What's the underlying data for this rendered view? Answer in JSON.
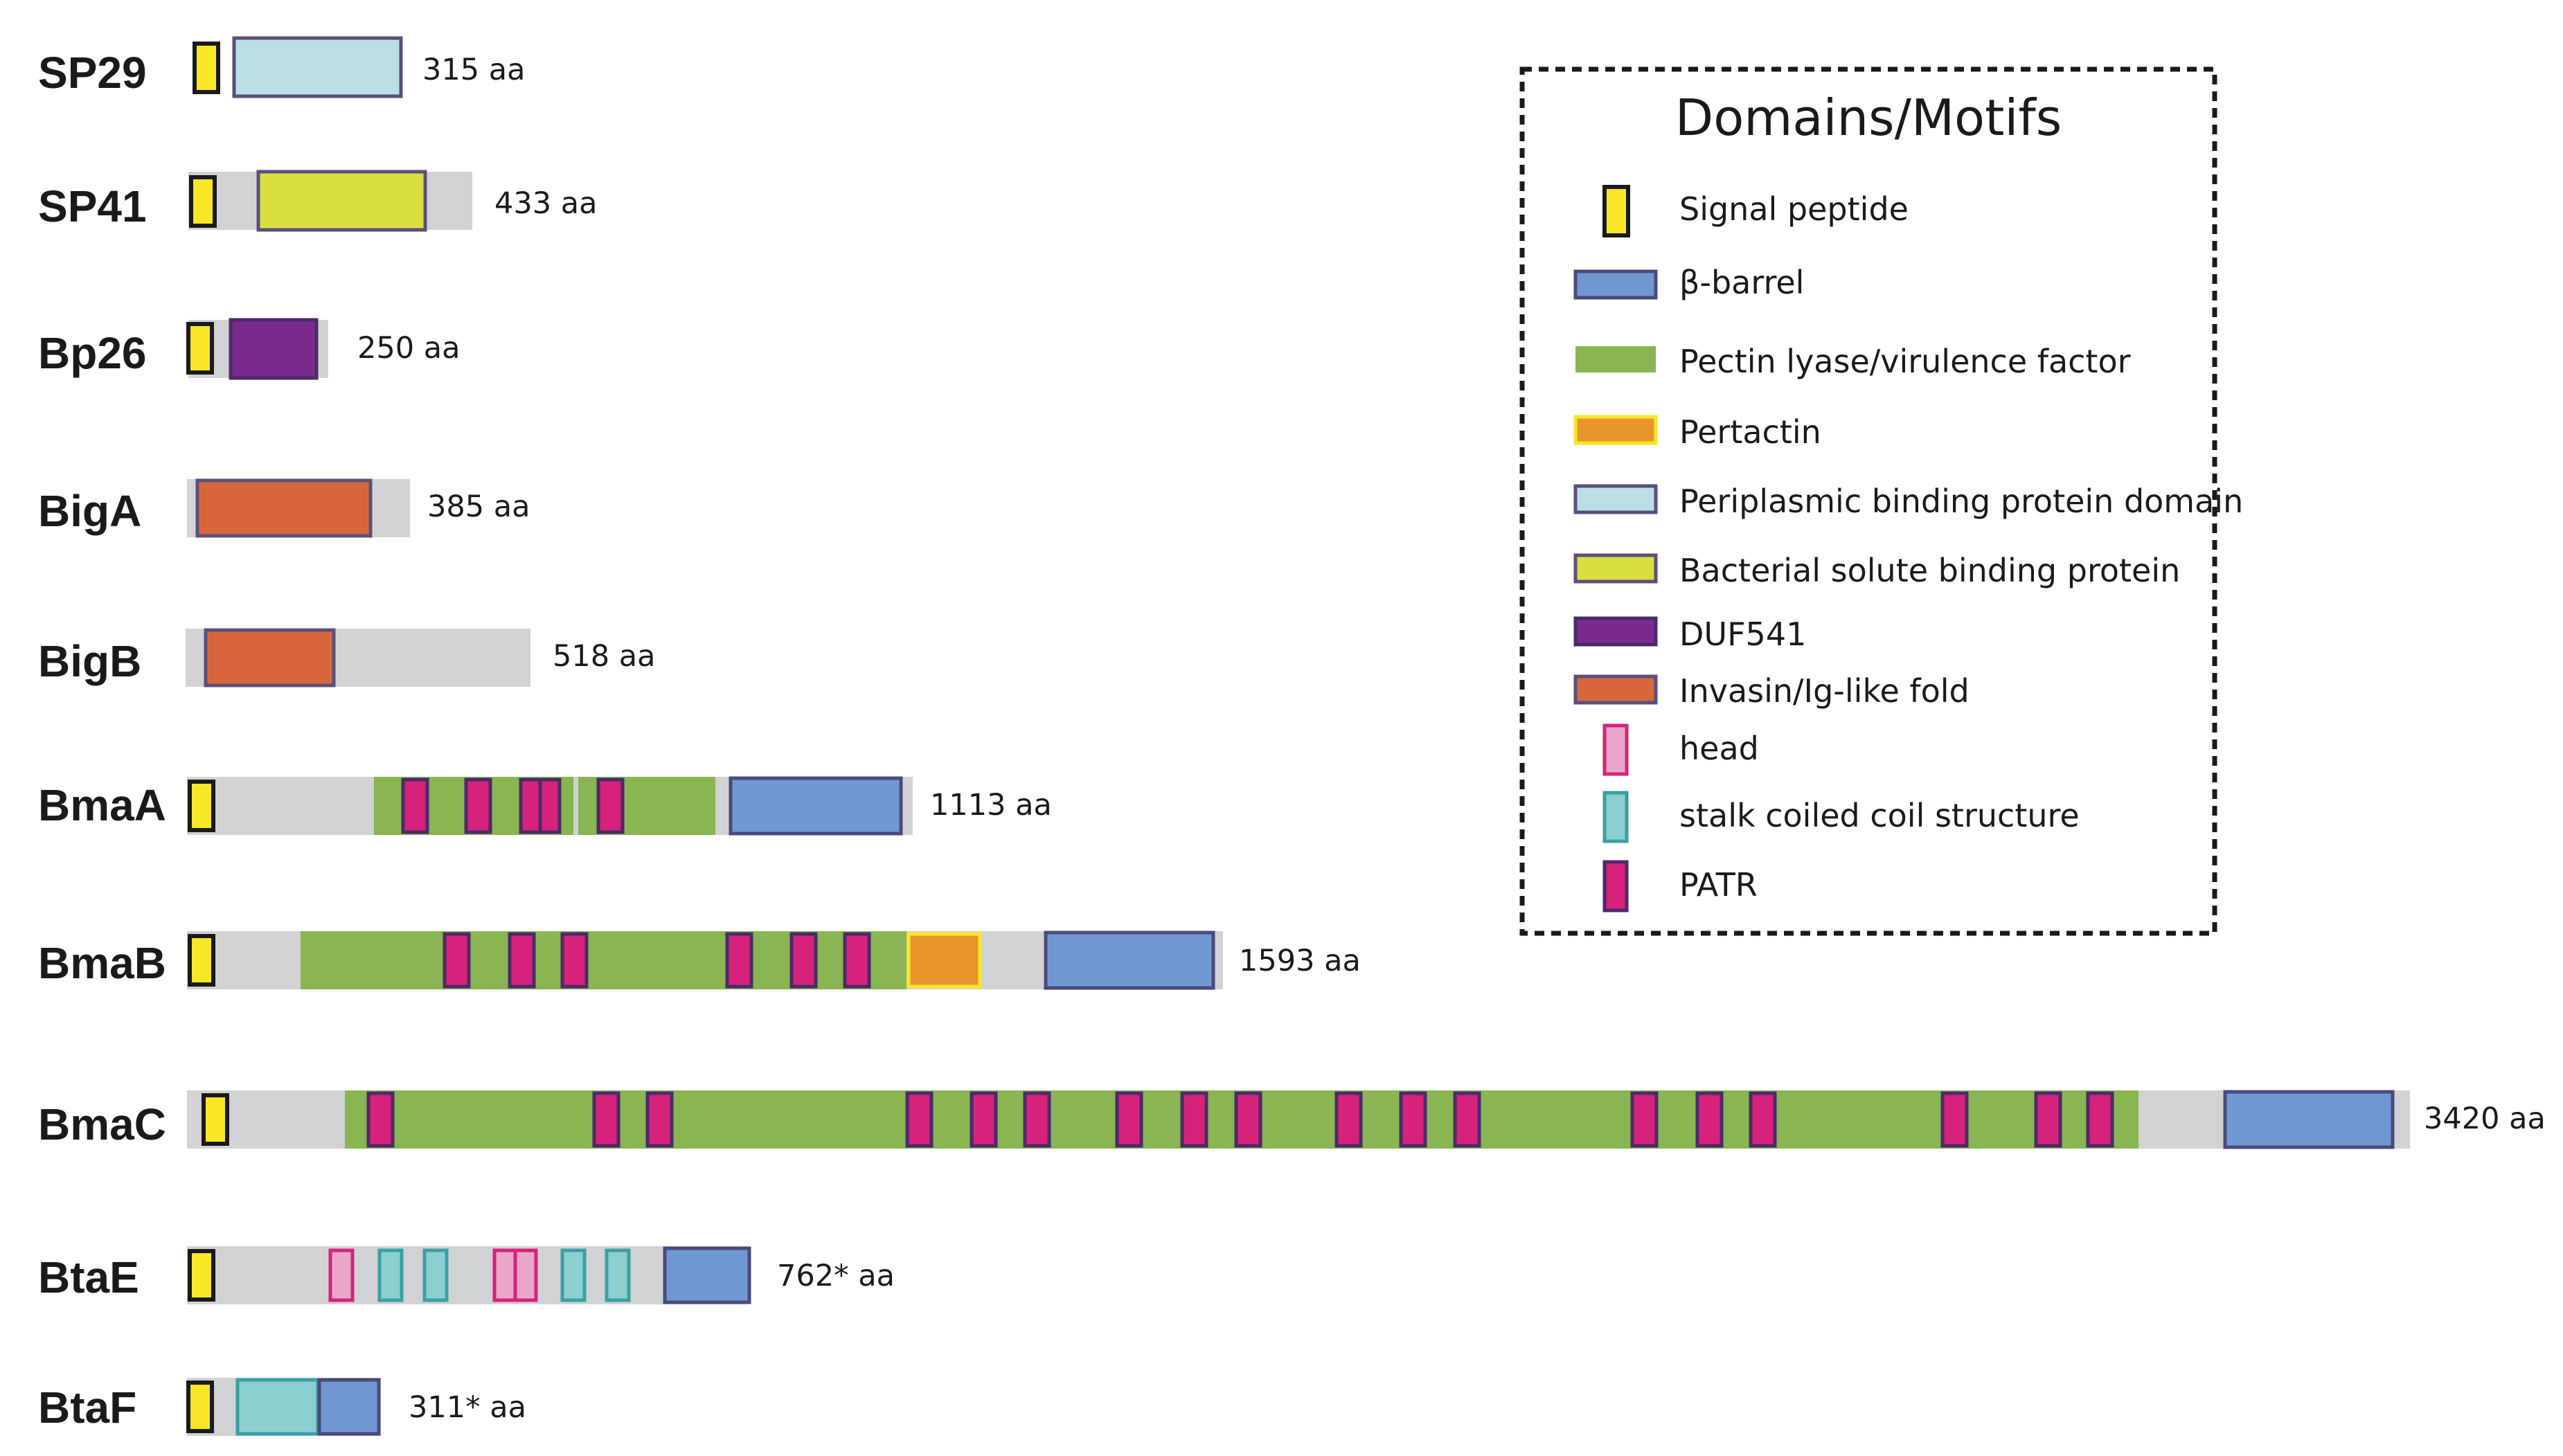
{
  "colors": {
    "backbone": "#d1d2d4",
    "signal_peptide": "#f7e726",
    "beta_barrel": "#7097d2",
    "pectin_lyase": "#89b552",
    "pertactin": "#e8962c",
    "periplasmic": "#b9dfe4",
    "solute_binding": "#d9df3f",
    "duf541": "#7b2b8f",
    "invasin": "#d7673a",
    "head": "#e9a6c8",
    "stalk": "#8ccfd0",
    "patr": "#d6227a"
  },
  "legend": {
    "title": "Domains/Motifs",
    "items": [
      {
        "key": "signal_peptide",
        "label": "Signal peptide",
        "shape": "tall"
      },
      {
        "key": "beta_barrel",
        "label": "β-barrel",
        "shape": "wide"
      },
      {
        "key": "pectin_lyase",
        "label": "Pectin lyase/virulence factor",
        "shape": "wide"
      },
      {
        "key": "pertactin",
        "label": "Pertactin",
        "shape": "wide"
      },
      {
        "key": "periplasmic",
        "label": "Periplasmic binding protein domain",
        "shape": "wide"
      },
      {
        "key": "solute_binding",
        "label": "Bacterial solute binding protein",
        "shape": "wide"
      },
      {
        "key": "duf541",
        "label": "DUF541",
        "shape": "wide"
      },
      {
        "key": "invasin",
        "label": "Invasin/Ig-like fold",
        "shape": "wide"
      },
      {
        "key": "head",
        "label": "head",
        "shape": "tall"
      },
      {
        "key": "stalk",
        "label": "stalk coiled coil structure",
        "shape": "tall"
      },
      {
        "key": "patr",
        "label": "PATR",
        "shape": "tall"
      }
    ]
  },
  "proteins": [
    {
      "name": "SP29",
      "length_label": "315 aa"
    },
    {
      "name": "SP41",
      "length_label": "433 aa"
    },
    {
      "name": "Bp26",
      "length_label": "250 aa"
    },
    {
      "name": "BigA",
      "length_label": "385 aa"
    },
    {
      "name": "BigB",
      "length_label": "518 aa"
    },
    {
      "name": "BmaA",
      "length_label": "1113 aa"
    },
    {
      "name": "BmaB",
      "length_label": "1593 aa"
    },
    {
      "name": "BmaC",
      "length_label": "3420 aa"
    },
    {
      "name": "BtaE",
      "length_label": "762* aa"
    },
    {
      "name": "BtaF",
      "length_label": "311* aa"
    }
  ]
}
